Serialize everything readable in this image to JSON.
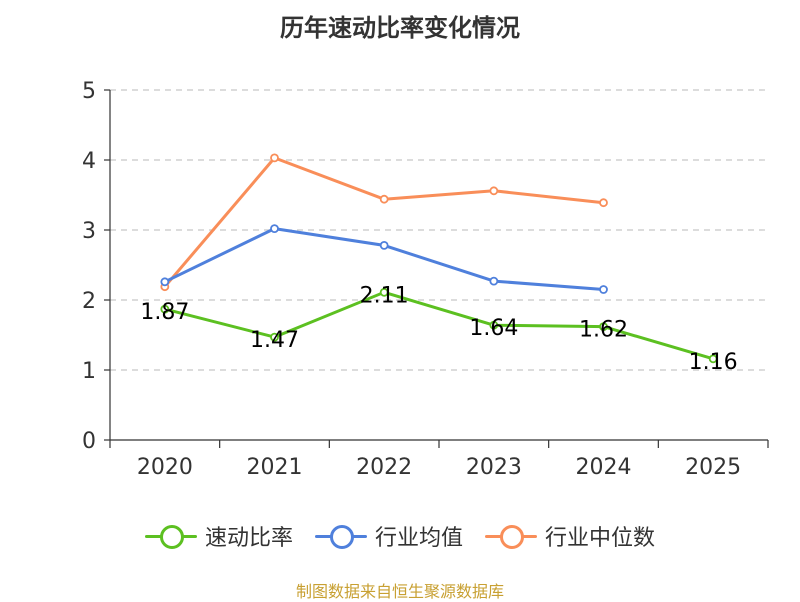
{
  "chart_data": {
    "type": "line",
    "title": "历年速动比率变化情况",
    "categories": [
      "2020",
      "2021",
      "2022",
      "2023",
      "2024",
      "2025"
    ],
    "y_ticks": [
      "0",
      "1",
      "2",
      "3",
      "4",
      "5"
    ],
    "ylim": [
      0,
      5
    ],
    "grid": true,
    "legend_position": "bottom",
    "series": [
      {
        "name": "速动比率",
        "color": "#5cc021",
        "values": [
          1.87,
          1.47,
          2.11,
          1.64,
          1.62,
          1.16
        ],
        "labels": [
          "1.87",
          "1.47",
          "2.11",
          "1.64",
          "1.62",
          "1.16"
        ]
      },
      {
        "name": "行业均值",
        "color": "#4f80dc",
        "values": [
          2.26,
          3.02,
          2.78,
          2.27,
          2.15,
          null
        ]
      },
      {
        "name": "行业中位数",
        "color": "#f98e59",
        "values": [
          2.19,
          4.03,
          3.44,
          3.56,
          3.39,
          null
        ]
      }
    ]
  },
  "source": "制图数据来自恒生聚源数据库"
}
